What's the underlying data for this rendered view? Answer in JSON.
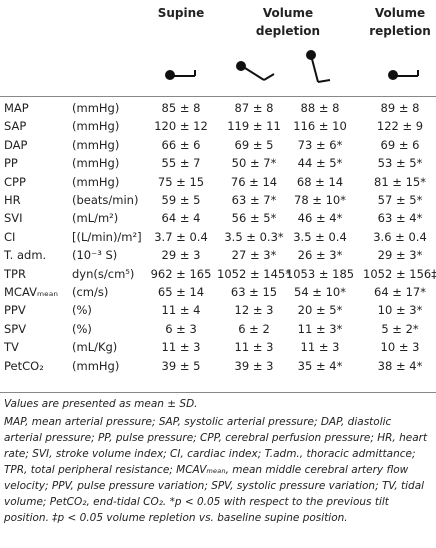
{
  "header": {
    "columns": [
      "Supine",
      "Volume depletion",
      "Volume repletion"
    ]
  },
  "table": {
    "rows": [
      [
        "MAP",
        "(mmHg)",
        "85 ± 8",
        "87 ± 8",
        "88 ± 8",
        "89 ± 8"
      ],
      [
        "SAP",
        "(mmHg)",
        "120 ± 12",
        "119 ± 11",
        "116 ± 10",
        "122 ± 9"
      ],
      [
        "DAP",
        "(mmHg)",
        "66 ± 6",
        "69 ± 5",
        "73 ± 6*",
        "69 ± 6"
      ],
      [
        "PP",
        "(mmHg)",
        "55 ± 7",
        "50 ± 7*",
        "44 ± 5*",
        "53 ± 5*"
      ],
      [
        "CPP",
        "(mmHg)",
        "75 ± 15",
        "76 ± 14",
        "68 ± 14",
        "81 ± 15*"
      ],
      [
        "HR",
        "(beats/min)",
        "59 ± 5",
        "63 ± 7*",
        "78 ± 10*",
        "57 ± 5*"
      ],
      [
        "SVI",
        "(mL/m²)",
        "64 ± 4",
        "56 ± 5*",
        "46 ± 4*",
        "63 ± 4*"
      ],
      [
        "CI",
        "[(L/min)/m²]",
        "3.7 ± 0.4",
        "3.5 ± 0.3*",
        "3.5 ± 0.4",
        "3.6 ± 0.4"
      ],
      [
        "T. adm.",
        "(10⁻³ S)",
        "29 ± 3",
        "27 ± 3*",
        "26 ± 3*",
        "29 ± 3*"
      ],
      [
        "TPR",
        "dyn(s/cm⁵)",
        "962 ± 165",
        "1052 ± 145*",
        "1053 ± 185",
        "1052 ± 156‡"
      ],
      [
        "MCAVₘₑₐₙ",
        "(cm/s)",
        "65 ± 14",
        "63 ± 15",
        "54 ± 10*",
        "64 ± 17*"
      ],
      [
        "PPV",
        "(%)",
        "11 ± 4",
        "12 ± 3",
        "20 ± 5*",
        "10 ± 3*"
      ],
      [
        "SPV",
        "(%)",
        "6 ± 3",
        "6 ± 2",
        "11 ± 3*",
        "5 ± 2*"
      ],
      [
        "TV",
        "(mL/Kg)",
        "11 ± 3",
        "11 ± 3",
        "11 ± 3",
        "10 ± 3"
      ],
      [
        "PetCO₂",
        "(mmHg)",
        "39 ± 5",
        "39 ± 3",
        "35 ± 4*",
        "38 ± 4*"
      ]
    ]
  },
  "notes": [
    "Values are presented as mean ± SD.",
    "MAP, mean arterial pressure; SAP, systolic arterial pressure; DAP, diastolic arterial pressure; PP, pulse pressure; CPP, cerebral perfusion pressure; HR, heart rate; SVI, stroke volume index; CI, cardiac index; T.adm., thoracic admittance; TPR, total peripheral resistance; MCAVₘₑₐₙ, mean middle cerebral artery flow velocity; PPV, pulse pressure variation; SPV, systolic pressure variation; TV, tidal volume; PetCO₂, end-tidal CO₂. *p < 0.05 with respect to the previous tilt position. ‡p < 0.05 volume repletion vs. baseline supine position."
  ]
}
